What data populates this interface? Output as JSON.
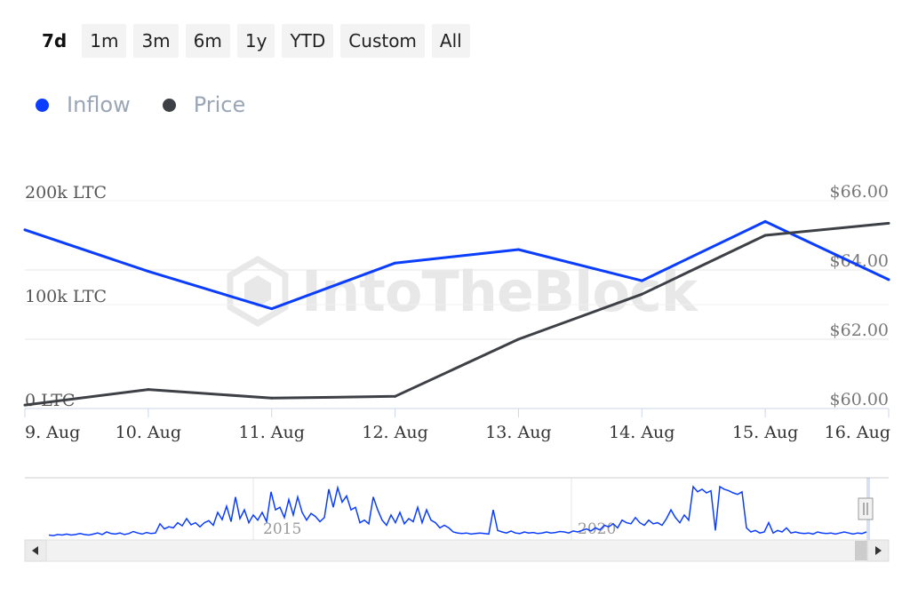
{
  "range_selector": {
    "buttons": [
      "7d",
      "1m",
      "3m",
      "6m",
      "1y",
      "YTD",
      "Custom",
      "All"
    ],
    "active": "7d"
  },
  "legend": {
    "items": [
      {
        "label": "Inflow",
        "color": "#0b3dff"
      },
      {
        "label": "Price",
        "color": "#3d4146"
      }
    ]
  },
  "watermark": {
    "text": "IntoTheBlock"
  },
  "chart_data": {
    "type": "line",
    "title": "",
    "x": [
      "9. Aug",
      "10. Aug",
      "11. Aug",
      "12. Aug",
      "13. Aug",
      "14. Aug",
      "15. Aug",
      "16. Aug"
    ],
    "series": [
      {
        "name": "Inflow",
        "axis": "left",
        "color": "#0b3dff",
        "values": [
          172000,
          132000,
          96000,
          140000,
          153000,
          123000,
          180000,
          124000
        ]
      },
      {
        "name": "Price",
        "axis": "right",
        "color": "#3d4146",
        "values": [
          60.1,
          60.55,
          60.3,
          60.35,
          62.0,
          63.3,
          65.0,
          65.35
        ]
      }
    ],
    "y_left": {
      "ticks": [
        "0 LTC",
        "100k LTC",
        "200k LTC"
      ],
      "tick_values": [
        0,
        100000,
        200000
      ],
      "range": [
        0,
        200000
      ]
    },
    "y_right": {
      "ticks": [
        "$60.00",
        "$62.00",
        "$64.00",
        "$66.00"
      ],
      "tick_values": [
        60,
        62,
        64,
        66
      ],
      "range": [
        60,
        66
      ]
    },
    "grid": true,
    "legend_position": "top-left",
    "navigator": {
      "labels": [
        "2015",
        "2020"
      ],
      "values": [
        0.06,
        0.05,
        0.07,
        0.06,
        0.08,
        0.06,
        0.07,
        0.09,
        0.07,
        0.06,
        0.08,
        0.1,
        0.07,
        0.12,
        0.09,
        0.08,
        0.1,
        0.07,
        0.09,
        0.13,
        0.1,
        0.08,
        0.11,
        0.09,
        0.1,
        0.28,
        0.18,
        0.22,
        0.2,
        0.3,
        0.24,
        0.38,
        0.26,
        0.3,
        0.22,
        0.3,
        0.34,
        0.25,
        0.5,
        0.36,
        0.62,
        0.32,
        0.8,
        0.38,
        0.55,
        0.3,
        0.45,
        0.35,
        0.5,
        0.32,
        0.9,
        0.55,
        0.6,
        0.4,
        0.75,
        0.45,
        0.8,
        0.5,
        0.35,
        0.48,
        0.42,
        0.32,
        0.4,
        0.95,
        0.6,
        0.98,
        0.7,
        0.82,
        0.55,
        0.6,
        0.3,
        0.35,
        0.28,
        0.8,
        0.55,
        0.35,
        0.25,
        0.45,
        0.3,
        0.5,
        0.28,
        0.38,
        0.32,
        0.6,
        0.3,
        0.55,
        0.35,
        0.3,
        0.2,
        0.25,
        0.2,
        0.12,
        0.1,
        0.09,
        0.1,
        0.08,
        0.09,
        0.1,
        0.09,
        0.08,
        0.55,
        0.15,
        0.12,
        0.1,
        0.14,
        0.1,
        0.09,
        0.12,
        0.1,
        0.11,
        0.09,
        0.1,
        0.12,
        0.1,
        0.11,
        0.13,
        0.12,
        0.1,
        0.14,
        0.12,
        0.15,
        0.18,
        0.14,
        0.2,
        0.16,
        0.25,
        0.22,
        0.28,
        0.2,
        0.35,
        0.3,
        0.28,
        0.4,
        0.3,
        0.25,
        0.35,
        0.28,
        0.3,
        0.25,
        0.38,
        0.55,
        0.4,
        0.3,
        0.45,
        0.35,
        1.0,
        0.9,
        0.95,
        0.88,
        0.92,
        0.15,
        1.0,
        0.95,
        0.92,
        0.88,
        0.85,
        0.9,
        0.2,
        0.12,
        0.15,
        0.1,
        0.12,
        0.3,
        0.1,
        0.15,
        0.12,
        0.2,
        0.1,
        0.12,
        0.1,
        0.09,
        0.1,
        0.08,
        0.12,
        0.1,
        0.09,
        0.1,
        0.08,
        0.1,
        0.12,
        0.1,
        0.08,
        0.1,
        0.09,
        0.12
      ]
    }
  }
}
